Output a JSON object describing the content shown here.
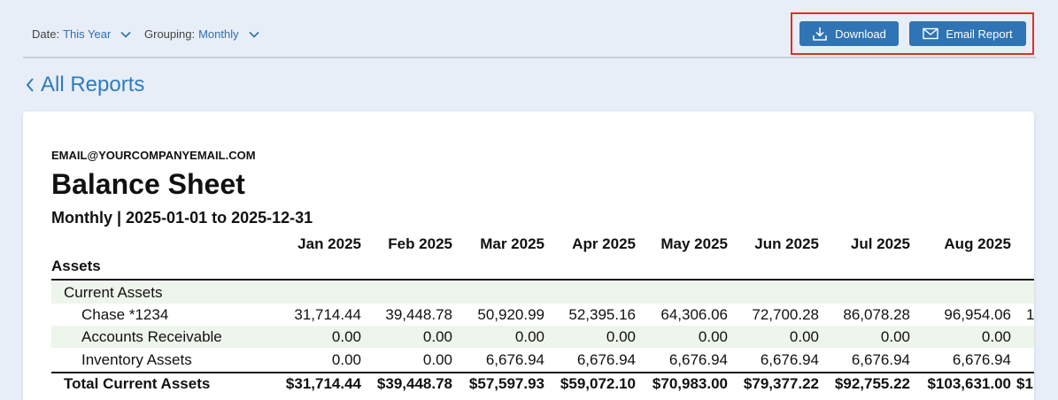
{
  "toolbar": {
    "date_label": "Date:",
    "date_value": "This Year",
    "grouping_label": "Grouping:",
    "grouping_value": "Monthly",
    "download_label": "Download",
    "email_label": "Email Report",
    "accent": "#2f74b5",
    "highlight_color": "#e0301e"
  },
  "nav": {
    "back_label": "All Reports"
  },
  "report": {
    "company": "EMAIL@YOURCOMPANYEMAIL.COM",
    "title": "Balance Sheet",
    "subtitle": "Monthly | 2025-01-01 to 2025-12-31",
    "months": [
      "Jan 2025",
      "Feb 2025",
      "Mar 2025",
      "Apr 2025",
      "May 2025",
      "Jun 2025",
      "Jul 2025",
      "Aug 2025"
    ],
    "section": "Assets",
    "rows": [
      {
        "label": "Current Assets",
        "values": [
          "",
          "",
          "",
          "",
          "",
          "",
          "",
          ""
        ],
        "truncated": ""
      },
      {
        "label": "Chase *1234",
        "values": [
          "31,714.44",
          "39,448.78",
          "50,920.99",
          "52,395.16",
          "64,306.06",
          "72,700.28",
          "86,078.28",
          "96,954.06"
        ],
        "truncated": "1"
      },
      {
        "label": "Accounts Receivable",
        "values": [
          "0.00",
          "0.00",
          "0.00",
          "0.00",
          "0.00",
          "0.00",
          "0.00",
          "0.00"
        ],
        "truncated": ""
      },
      {
        "label": "Inventory Assets",
        "values": [
          "0.00",
          "0.00",
          "6,676.94",
          "6,676.94",
          "6,676.94",
          "6,676.94",
          "6,676.94",
          "6,676.94"
        ],
        "truncated": ""
      },
      {
        "label": "Total Current Assets",
        "values": [
          "$31,714.44",
          "$39,448.78",
          "$57,597.93",
          "$59,072.10",
          "$70,983.00",
          "$79,377.22",
          "$92,755.22",
          "$103,631.00"
        ],
        "truncated": "$1"
      }
    ]
  }
}
